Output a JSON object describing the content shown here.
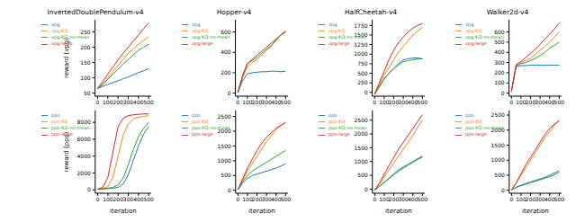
{
  "chart_data": [
    {
      "type": "line",
      "title": "InvertedDoublePendulum-v4",
      "y_label": "reward (vpg)",
      "legend": "upper left",
      "x": [
        0,
        50,
        100,
        150,
        200,
        250,
        300,
        350,
        400,
        450,
        500
      ],
      "xlim": [
        -25,
        525
      ],
      "xticks": [
        0,
        100,
        200,
        300,
        400,
        500
      ],
      "ylim": [
        40,
        290
      ],
      "yticks": [
        50,
        100,
        150,
        200,
        250
      ],
      "series": [
        {
          "name": "vpg",
          "color": "#1f77b4",
          "values": [
            65,
            72,
            78,
            85,
            90,
            97,
            103,
            110,
            117,
            123,
            130
          ]
        },
        {
          "name": "vpg-KQ",
          "color": "#ff7f0e",
          "values": [
            65,
            80,
            100,
            120,
            140,
            160,
            180,
            195,
            210,
            222,
            235
          ]
        },
        {
          "name": "vpg-KQ-no-mean",
          "color": "#2ca02c",
          "values": [
            65,
            78,
            95,
            112,
            128,
            145,
            160,
            175,
            190,
            200,
            210
          ]
        },
        {
          "name": "vpg-large",
          "color": "#d62728",
          "values": [
            65,
            88,
            112,
            135,
            158,
            180,
            200,
            220,
            240,
            260,
            280
          ]
        }
      ]
    },
    {
      "type": "line",
      "title": "Hopper-v4",
      "legend": "upper left",
      "x": [
        0,
        50,
        100,
        150,
        200,
        250,
        300,
        350,
        400,
        450,
        500
      ],
      "xlim": [
        -25,
        525
      ],
      "xticks": [
        0,
        100,
        200,
        300,
        400,
        500
      ],
      "ylim": [
        -30,
        720
      ],
      "yticks": [
        0,
        200,
        400,
        600
      ],
      "series": [
        {
          "name": "vpg",
          "color": "#1f77b4",
          "values": [
            5,
            120,
            190,
            200,
            205,
            210,
            210,
            215,
            215,
            210,
            215
          ]
        },
        {
          "name": "vpg-KQ",
          "color": "#ff7f0e",
          "values": [
            5,
            150,
            260,
            300,
            330,
            370,
            420,
            460,
            520,
            570,
            600
          ]
        },
        {
          "name": "vpg-KQ-no-mean",
          "color": "#2ca02c",
          "values": [
            5,
            170,
            290,
            320,
            350,
            390,
            430,
            470,
            520,
            570,
            600
          ]
        },
        {
          "name": "vpg-large",
          "color": "#d62728",
          "values": [
            5,
            170,
            290,
            330,
            370,
            410,
            450,
            490,
            530,
            570,
            610
          ]
        }
      ]
    },
    {
      "type": "line",
      "title": "HalfCheetah-v4",
      "legend": "upper left",
      "x": [
        0,
        50,
        100,
        150,
        200,
        250,
        300,
        350,
        400,
        450,
        500
      ],
      "xlim": [
        -25,
        525
      ],
      "xticks": [
        0,
        100,
        200,
        300,
        400,
        500
      ],
      "ylim": [
        -100,
        1900
      ],
      "yticks": [
        0,
        250,
        500,
        750,
        1000,
        1250,
        1500,
        1750
      ],
      "series": [
        {
          "name": "vpg",
          "color": "#1f77b4",
          "values": [
            -50,
            150,
            350,
            500,
            620,
            750,
            850,
            880,
            900,
            900,
            880
          ]
        },
        {
          "name": "vpg-KQ",
          "color": "#ff7f0e",
          "values": [
            -50,
            200,
            450,
            650,
            850,
            1050,
            1200,
            1350,
            1500,
            1600,
            1700
          ]
        },
        {
          "name": "vpg-KQ-no-mean",
          "color": "#2ca02c",
          "values": [
            -50,
            150,
            350,
            500,
            620,
            720,
            800,
            830,
            850,
            870,
            880
          ]
        },
        {
          "name": "vpg-large",
          "color": "#d62728",
          "values": [
            -50,
            250,
            550,
            850,
            1100,
            1300,
            1450,
            1580,
            1680,
            1750,
            1800
          ]
        }
      ]
    },
    {
      "type": "line",
      "title": "Walker2d-v4",
      "legend": "upper left",
      "x": [
        0,
        50,
        100,
        150,
        200,
        250,
        300,
        350,
        400,
        450,
        500
      ],
      "xlim": [
        -25,
        525
      ],
      "xticks": [
        0,
        100,
        200,
        300,
        400,
        500
      ],
      "ylim": [
        -30,
        720
      ],
      "yticks": [
        0,
        100,
        200,
        300,
        400,
        500,
        600
      ],
      "series": [
        {
          "name": "vpg",
          "color": "#1f77b4",
          "values": [
            15,
            260,
            270,
            270,
            275,
            275,
            275,
            275,
            275,
            275,
            275
          ]
        },
        {
          "name": "vpg-KQ",
          "color": "#ff7f0e",
          "values": [
            15,
            270,
            300,
            320,
            340,
            380,
            420,
            460,
            500,
            550,
            600
          ]
        },
        {
          "name": "vpg-KQ-no-mean",
          "color": "#2ca02c",
          "values": [
            15,
            270,
            290,
            300,
            320,
            340,
            370,
            400,
            440,
            470,
            500
          ]
        },
        {
          "name": "vpg-large",
          "color": "#d62728",
          "values": [
            15,
            280,
            310,
            350,
            390,
            430,
            480,
            530,
            580,
            630,
            690
          ]
        }
      ]
    },
    {
      "type": "line",
      "y_label": "reward (ppo)",
      "x_label": "iteration",
      "legend": "upper left",
      "x": [
        0,
        50,
        100,
        150,
        200,
        250,
        300,
        350,
        400,
        450,
        500
      ],
      "xlim": [
        -25,
        525
      ],
      "xticks": [
        0,
        100,
        200,
        300,
        400,
        500
      ],
      "ylim": [
        -400,
        9400
      ],
      "yticks": [
        0,
        2000,
        4000,
        6000,
        8000
      ],
      "series": [
        {
          "name": "ppo",
          "color": "#1f77b4",
          "values": [
            80,
            100,
            150,
            200,
            300,
            700,
            1800,
            3500,
            5200,
            6600,
            7500
          ]
        },
        {
          "name": "ppo-KQ",
          "color": "#ff7f0e",
          "values": [
            80,
            150,
            400,
            1500,
            4000,
            6500,
            7800,
            8400,
            8600,
            8700,
            8800
          ]
        },
        {
          "name": "ppo-KQ-no-mean",
          "color": "#2ca02c",
          "values": [
            80,
            120,
            200,
            300,
            600,
            1400,
            3000,
            4800,
            6300,
            7300,
            8000
          ]
        },
        {
          "name": "ppo-large",
          "color": "#d62728",
          "values": [
            80,
            300,
            1500,
            4500,
            7500,
            8500,
            8800,
            8900,
            8950,
            9000,
            9000
          ]
        }
      ]
    },
    {
      "type": "line",
      "x_label": "iteration",
      "legend": "upper left",
      "x": [
        0,
        50,
        100,
        150,
        200,
        250,
        300,
        350,
        400,
        450,
        500
      ],
      "xlim": [
        -25,
        525
      ],
      "xticks": [
        0,
        100,
        200,
        300,
        400,
        500
      ],
      "ylim": [
        -100,
        2700
      ],
      "yticks": [
        0,
        500,
        1000,
        1500,
        2000,
        2500
      ],
      "series": [
        {
          "name": "ppo",
          "color": "#1f77b4",
          "values": [
            20,
            250,
            400,
            500,
            550,
            600,
            650,
            700,
            750,
            820,
            900
          ]
        },
        {
          "name": "ppo-KQ",
          "color": "#ff7f0e",
          "values": [
            20,
            350,
            650,
            900,
            1150,
            1400,
            1650,
            1850,
            2050,
            2200,
            2300
          ]
        },
        {
          "name": "ppo-KQ-no-mean",
          "color": "#2ca02c",
          "values": [
            20,
            300,
            500,
            650,
            750,
            850,
            950,
            1050,
            1150,
            1250,
            1350
          ]
        },
        {
          "name": "ppo-large",
          "color": "#d62728",
          "values": [
            20,
            400,
            750,
            1050,
            1350,
            1600,
            1800,
            1950,
            2100,
            2200,
            2300
          ]
        }
      ]
    },
    {
      "type": "line",
      "x_label": "iteration",
      "legend": "upper left",
      "x": [
        0,
        50,
        100,
        150,
        200,
        250,
        300,
        350,
        400,
        450,
        500
      ],
      "xlim": [
        -25,
        525
      ],
      "xticks": [
        0,
        100,
        200,
        300,
        400,
        500
      ],
      "ylim": [
        -150,
        2850
      ],
      "yticks": [
        0,
        500,
        1000,
        1500,
        2000,
        2500
      ],
      "series": [
        {
          "name": "ppo",
          "color": "#1f77b4",
          "values": [
            -30,
            100,
            250,
            400,
            550,
            700,
            800,
            900,
            1000,
            1100,
            1200
          ]
        },
        {
          "name": "ppo-KQ",
          "color": "#ff7f0e",
          "values": [
            -30,
            180,
            450,
            700,
            950,
            1200,
            1450,
            1700,
            1950,
            2250,
            2500
          ]
        },
        {
          "name": "ppo-KQ-no-mean",
          "color": "#2ca02c",
          "values": [
            -30,
            100,
            250,
            380,
            520,
            650,
            760,
            870,
            970,
            1080,
            1150
          ]
        },
        {
          "name": "ppo-large",
          "color": "#d62728",
          "values": [
            -30,
            220,
            550,
            850,
            1150,
            1450,
            1700,
            1950,
            2200,
            2450,
            2700
          ]
        }
      ]
    },
    {
      "type": "line",
      "x_label": "iteration",
      "legend": "upper left",
      "x": [
        0,
        50,
        100,
        150,
        200,
        250,
        300,
        350,
        400,
        450,
        500
      ],
      "xlim": [
        -25,
        525
      ],
      "xticks": [
        0,
        100,
        200,
        300,
        400,
        500
      ],
      "ylim": [
        -100,
        2650
      ],
      "yticks": [
        0,
        500,
        1000,
        1500,
        2000,
        2500
      ],
      "series": [
        {
          "name": "ppo",
          "color": "#1f77b4",
          "values": [
            10,
            100,
            150,
            200,
            250,
            300,
            350,
            400,
            450,
            520,
            600
          ]
        },
        {
          "name": "ppo-KQ",
          "color": "#ff7f0e",
          "values": [
            10,
            250,
            500,
            750,
            1000,
            1250,
            1500,
            1750,
            1950,
            2150,
            2350
          ]
        },
        {
          "name": "ppo-KQ-no-mean",
          "color": "#2ca02c",
          "values": [
            10,
            100,
            170,
            220,
            280,
            330,
            380,
            430,
            500,
            580,
            650
          ]
        },
        {
          "name": "ppo-large",
          "color": "#d62728",
          "values": [
            10,
            250,
            550,
            850,
            1100,
            1350,
            1600,
            1850,
            2050,
            2200,
            2300
          ]
        }
      ]
    }
  ]
}
